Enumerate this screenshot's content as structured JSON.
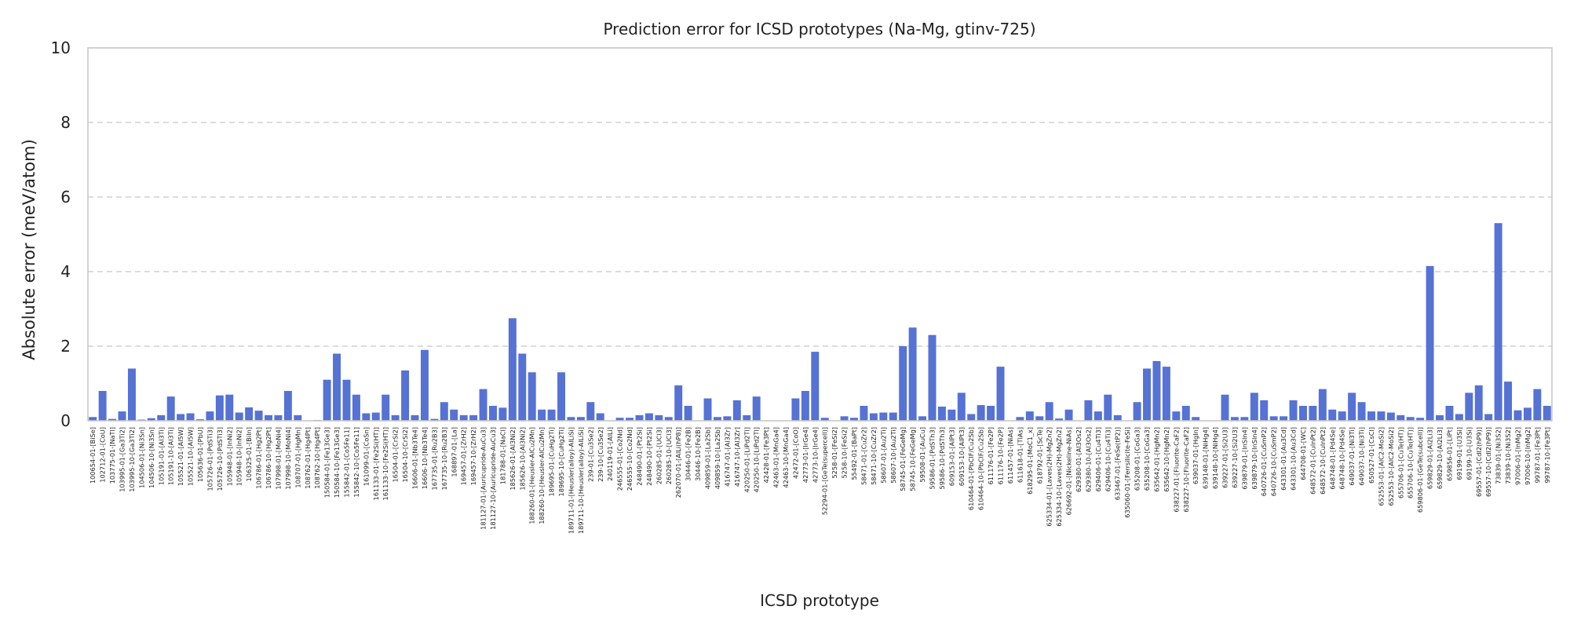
{
  "chart_data": {
    "type": "bar",
    "title": "Prediction error for ICSD prototypes (Na-Mg, gtinv-725)",
    "xlabel": "ICSD prototype",
    "ylabel": "Absolute error (meV/atom)",
    "ylim": [
      0,
      10
    ],
    "yticks": [
      0,
      2,
      4,
      6,
      8,
      10
    ],
    "grid": "horizontal dashed",
    "bar_color": "#5572d4",
    "categories": [
      "100654-01-[BiSe]",
      "102712-01-[CoU]",
      "103775-01-[NaTl]",
      "103995-01-[Ga3Ti2]",
      "103995-10-[Ga3Ti2]",
      "104506-01-[Ni3Sn]",
      "104506-10-[Ni3Sn]",
      "105191-01-[Al3Ti]",
      "105191-10-[Al3Ti]",
      "105521-01-[Al5W]",
      "105521-10-[Al5W]",
      "105636-01-[PbU]",
      "105726-01-[PdSTi3]",
      "105726-10-[PdSTi3]",
      "105948-01-[InNi2]",
      "105948-10-[InNi2]",
      "106325-01-[BiIn]",
      "106786-01-[Hg2Pt]",
      "106786-10-[Hg2Pt]",
      "107998-01-[MoNi4]",
      "107998-10-[MoNi4]",
      "108707-01-[HgMn]",
      "108762-01-[Hg4Pt]",
      "108762-10-[Hg4Pt]",
      "150584-01-[Fe13Ge3]",
      "150584-10-[Fe13Ge3]",
      "155842-01-[Co5Fe11]",
      "155842-10-[Co5Fe11]",
      "161099-01-[CoSn]",
      "161133-01-[Fe2Si(HT)]",
      "161133-10-[Fe2Si(HT)]",
      "16504-01-[CrSi2]",
      "16504-10-[CrSi2]",
      "16606-01-[Nb3Te4]",
      "16606-10-[Nb3Te4]",
      "167735-01-[Ru2B3]",
      "167735-10-[Ru2B3]",
      "168897-01-[La]",
      "169457-01-[ZrH2]",
      "169457-10-[ZrH2]",
      "181127-01-[Auricupride-AuCu3]",
      "181127-10-[Auricupride-AuCu3]",
      "181788-01-[NaCl]",
      "185626-01-[Al3Ni2]",
      "185626-10-[Al3Ni2]",
      "188260-01-[Heusler-AlCu2Mn]",
      "188260-10-[Heusler-AlCu2Mn]",
      "189695-01-[CuHg2Ti]",
      "189695-10-[CuHg2Ti]",
      "189711-01-[Heusler(alloy)-AlLiSi]",
      "189711-10-[Heusler(alloy)-AlLiSi]",
      "239-01-[Cu3Se2]",
      "239-10-[Cu3Se2]",
      "240119-01-[AlLi]",
      "246555-01-[Co2Nd]",
      "246555-10-[Co2Nd]",
      "248490-01-[Pt2Si]",
      "248490-10-[Pt2Si]",
      "260285-01-[UCl3]",
      "260285-10-[UCl3]",
      "262070-01-[AlLi(hP8)]",
      "30446-01-[Fe2B]",
      "30446-10-[Fe2B]",
      "409859-01-[La2Sb]",
      "409859-10-[La2Sb]",
      "416747-01-[Al3Zr]",
      "416747-10-[Al3Zr]",
      "420250-01-[LiPd2Tl]",
      "420250-10-[LiPd2Tl]",
      "42428-01-[Fe3Pt]",
      "42463-01-[MnGa4]",
      "42463-10-[MnGa4]",
      "42472-01-[CoO]",
      "42773-01-[IrGe4]",
      "42773-10-[IrGe4]",
      "52294-01-[GeTe(supercell)]",
      "5258-01-[FeSi2]",
      "5258-10-[FeSi2]",
      "55492-01-[BaPt]",
      "58471-01-[CuZr2]",
      "58471-10-[CuZr2]",
      "58607-01-[Au2Ti]",
      "58607-10-[Au2Ti]",
      "58745-01-[FeGeMg]",
      "58745-10-[FeGeMg]",
      "59508-01-[AuCu]",
      "59586-01-[PdSTh3]",
      "59586-10-[PdSTh3]",
      "609153-01-[AlPt3]",
      "609153-10-[AlPt3]",
      "610464-01-[PbClF/Cu2Sb]",
      "610464-10-[PbClF/Cu2Sb]",
      "611176-01-[Fe2P]",
      "611176-10-[Fe2P]",
      "611457-01-[NiAs]",
      "611618-01-[TlAs]",
      "618295-01-[MoC1_x]",
      "618792-01-[ScTe]",
      "625334-01-[Laves(2H)-MgZn2]",
      "625334-10-[Laves(2H)-MgZn2]",
      "626692-01-[Nickeline-NiAs]",
      "629380-01-[Al3Os2]",
      "629380-10-[Al3Os2]",
      "629406-01-[Cu4Ti3]",
      "629406-10-[Cu4Ti3]",
      "633467-01-[FeSe(tP2)]",
      "635060-01-[Ferrsilicite-FeSi]",
      "635208-01-[CoGa3]",
      "635208-10-[CoGa3]",
      "635642-01-[HgMn2]",
      "635642-10-[HgMn2]",
      "638227-01-[Fluorite-CaF2]",
      "638227-10-[Fluorite-CaF2]",
      "639037-01-[HgIn]",
      "639148-01-[NiHg4]",
      "639148-10-[NiHg4]",
      "639227-01-[Si2U3]",
      "639227-10-[Si2U3]",
      "639879-01-[InSIn4]",
      "639879-10-[InSIn4]",
      "640726-01-[CuSmP2]",
      "640726-10-[CuSmP2]",
      "643301-01-[Au3Cd]",
      "643301-10-[Au3Cd]",
      "644708-01-[WC]",
      "648572-01-[CuInPt2]",
      "648572-10-[CuInPt2]",
      "648748-01-[Pd4Se]",
      "648748-10-[Pd4Se]",
      "649037-01-[Ni3Ti]",
      "649037-10-[Ni3Ti]",
      "650527-01-[CsCl]",
      "652553-01-[AlC2-MoSi2]",
      "652553-10-[AlC2-MoSi2]",
      "655706-01-[CuTe(HT)]",
      "655706-10-[CuTe(HT)]",
      "659806-01-[GeTe(subcell)]",
      "659829-01-[Al2Li3]",
      "659829-10-[Al2Li3]",
      "659856-01-[LiPt]",
      "69199-01-[U3Si]",
      "69199-10-[U3Si]",
      "69557-01-[CdI2(hP9)]",
      "69557-10-[CdI2(hP9)]",
      "73839-01-[Ni3S2]",
      "73839-10-[Ni3S2]",
      "97006-01-[InMg2]",
      "97006-10-[InMg2]",
      "99787-01-[Fe3Pt]",
      "99787-10-[Fe3Pt]"
    ],
    "values": [
      0.1,
      0.8,
      0.05,
      0.25,
      1.4,
      0.03,
      0.07,
      0.15,
      0.65,
      0.18,
      0.2,
      0.04,
      0.25,
      0.68,
      0.7,
      0.22,
      0.36,
      0.27,
      0.15,
      0.15,
      0.8,
      0.15,
      0.0,
      0.02,
      1.1,
      1.8,
      1.1,
      0.7,
      0.2,
      0.22,
      0.7,
      0.15,
      1.35,
      0.15,
      1.9,
      0.05,
      0.5,
      0.3,
      0.15,
      0.15,
      0.85,
      0.4,
      0.35,
      2.75,
      1.8,
      1.3,
      0.3,
      0.3,
      1.3,
      0.1,
      0.1,
      0.5,
      0.2,
      0.0,
      0.08,
      0.08,
      0.15,
      0.2,
      0.15,
      0.1,
      0.95,
      0.4,
      0.0,
      0.6,
      0.1,
      0.12,
      0.55,
      0.15,
      0.65,
      0.0,
      0.0,
      0.0,
      0.6,
      0.8,
      1.85,
      0.08,
      0.0,
      0.12,
      0.08,
      0.4,
      0.2,
      0.22,
      0.22,
      2.0,
      2.5,
      0.12,
      2.3,
      0.38,
      0.3,
      0.75,
      0.18,
      0.42,
      0.4,
      1.45,
      0.0,
      0.1,
      0.25,
      0.12,
      0.5,
      0.06,
      0.3,
      0.0,
      0.55,
      0.25,
      0.7,
      0.15,
      0.0,
      0.5,
      1.4,
      1.6,
      1.45,
      0.25,
      0.4,
      0.1,
      0.0,
      0.0,
      0.7,
      0.1,
      0.1,
      0.75,
      0.55,
      0.12,
      0.12,
      0.55,
      0.4,
      0.4,
      0.85,
      0.3,
      0.25,
      0.75,
      0.5,
      0.25,
      0.25,
      0.22,
      0.15,
      0.1,
      0.08,
      4.15,
      0.15,
      0.4,
      0.18,
      0.75,
      0.95,
      0.18,
      5.3,
      1.05,
      0.28,
      0.35,
      0.85,
      0.4
    ]
  }
}
